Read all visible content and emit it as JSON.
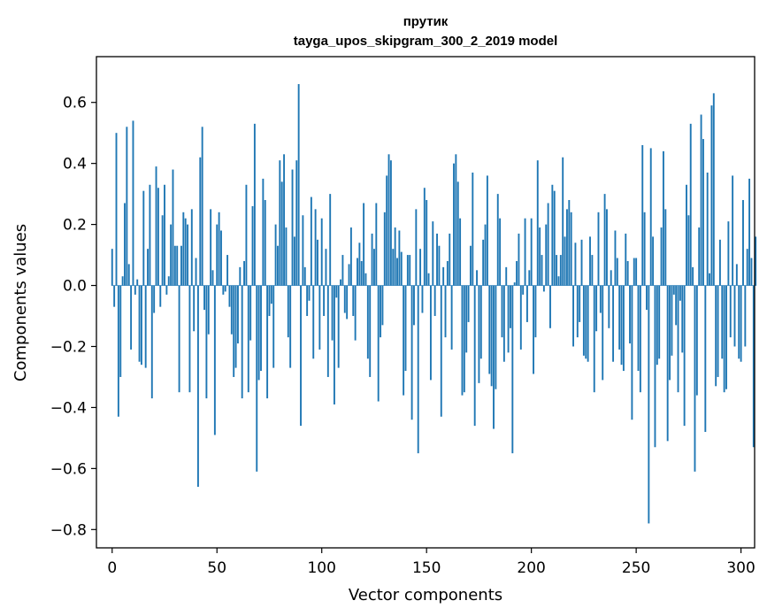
{
  "chart_data": {
    "type": "bar",
    "title": "прутик",
    "subtitle": "tayga_upos_skipgram_300_2_2019 model",
    "xlabel": "Vector components",
    "ylabel": "Components values",
    "xlim": [
      -7.5,
      306.5
    ],
    "ylim": [
      -0.86,
      0.75
    ],
    "xticks": [
      0,
      50,
      100,
      150,
      200,
      250,
      300
    ],
    "xtick_labels": [
      "0",
      "50",
      "100",
      "150",
      "200",
      "250",
      "300"
    ],
    "yticks": [
      -0.8,
      -0.6,
      -0.4,
      -0.2,
      0.0,
      0.2,
      0.4,
      0.6
    ],
    "ytick_labels": [
      "−0.8",
      "−0.6",
      "−0.4",
      "−0.2",
      "0.0",
      "0.2",
      "0.4",
      "0.6"
    ],
    "bar_color": "#1f77b4",
    "values": [
      0.12,
      -0.07,
      0.5,
      -0.43,
      -0.3,
      0.03,
      0.27,
      0.52,
      0.07,
      -0.21,
      0.54,
      -0.03,
      0.02,
      -0.25,
      -0.26,
      0.31,
      -0.27,
      0.12,
      0.33,
      -0.37,
      -0.09,
      0.39,
      0.32,
      -0.07,
      0.23,
      0.33,
      -0.03,
      0.03,
      0.2,
      0.38,
      0.13,
      0.13,
      -0.35,
      0.13,
      0.24,
      0.22,
      0.2,
      -0.35,
      0.25,
      -0.15,
      0.09,
      -0.66,
      0.42,
      0.52,
      -0.08,
      -0.37,
      -0.16,
      0.25,
      0.05,
      -0.49,
      0.2,
      0.24,
      0.18,
      -0.03,
      -0.02,
      0.1,
      -0.07,
      -0.16,
      -0.3,
      -0.27,
      -0.19,
      0.06,
      -0.37,
      0.08,
      0.33,
      -0.35,
      -0.18,
      0.26,
      0.53,
      -0.61,
      -0.31,
      -0.28,
      0.35,
      0.28,
      -0.37,
      -0.1,
      -0.06,
      -0.27,
      0.2,
      0.13,
      0.41,
      0.34,
      0.43,
      0.19,
      -0.17,
      -0.27,
      0.38,
      0.16,
      0.41,
      0.66,
      -0.46,
      0.23,
      0.06,
      -0.1,
      -0.05,
      0.29,
      -0.24,
      0.25,
      0.15,
      -0.21,
      0.22,
      -0.1,
      0.12,
      -0.3,
      0.3,
      -0.18,
      -0.39,
      -0.04,
      -0.27,
      0.02,
      0.1,
      -0.09,
      -0.11,
      0.07,
      0.19,
      -0.1,
      -0.18,
      0.09,
      0.14,
      0.08,
      0.27,
      0.04,
      -0.24,
      -0.3,
      0.17,
      0.12,
      0.27,
      -0.38,
      -0.17,
      -0.13,
      0.24,
      0.36,
      0.43,
      0.41,
      0.12,
      0.19,
      0.09,
      0.18,
      0.11,
      -0.36,
      -0.28,
      0.1,
      0.1,
      -0.44,
      -0.13,
      0.25,
      -0.55,
      0.12,
      -0.09,
      0.32,
      0.28,
      0.04,
      -0.31,
      0.21,
      -0.1,
      0.17,
      0.13,
      -0.43,
      0.06,
      -0.17,
      0.08,
      0.17,
      -0.21,
      0.4,
      0.43,
      0.34,
      0.22,
      -0.36,
      -0.35,
      -0.22,
      -0.12,
      0.13,
      0.37,
      -0.46,
      0.05,
      -0.32,
      -0.24,
      0.15,
      0.2,
      0.36,
      -0.29,
      -0.33,
      -0.47,
      -0.34,
      0.3,
      0.22,
      -0.17,
      -0.25,
      0.06,
      -0.22,
      -0.14,
      -0.55,
      0.01,
      0.08,
      0.17,
      -0.21,
      -0.03,
      0.22,
      -0.12,
      0.05,
      0.22,
      -0.29,
      -0.17,
      0.41,
      0.19,
      0.1,
      -0.02,
      0.2,
      0.27,
      -0.14,
      0.33,
      0.31,
      0.1,
      0.03,
      0.1,
      0.42,
      0.16,
      0.25,
      0.28,
      0.24,
      -0.2,
      0.14,
      -0.17,
      -0.12,
      0.15,
      -0.23,
      -0.24,
      -0.25,
      0.16,
      0.1,
      -0.35,
      -0.15,
      0.24,
      -0.09,
      -0.31,
      0.3,
      0.25,
      -0.14,
      0.05,
      -0.25,
      0.18,
      0.09,
      -0.21,
      -0.26,
      -0.28,
      0.17,
      0.08,
      -0.19,
      -0.44,
      0.09,
      0.09,
      -0.28,
      -0.35,
      0.46,
      0.24,
      -0.08,
      -0.78,
      0.45,
      0.16,
      -0.53,
      -0.26,
      -0.24,
      0.19,
      0.44,
      0.25,
      -0.51,
      -0.31,
      -0.23,
      -0.03,
      -0.13,
      -0.35,
      -0.05,
      -0.22,
      -0.46,
      0.33,
      0.23,
      0.53,
      0.06,
      -0.61,
      -0.36,
      0.19,
      0.56,
      0.48,
      -0.48,
      0.37,
      0.04,
      0.59,
      0.63,
      -0.33,
      -0.3,
      0.15,
      -0.24,
      -0.35,
      -0.34,
      0.21,
      -0.17,
      0.36,
      -0.2,
      0.07,
      -0.24,
      -0.25,
      0.28,
      -0.2,
      0.12,
      0.35,
      0.09,
      -0.53,
      0.16
    ]
  }
}
